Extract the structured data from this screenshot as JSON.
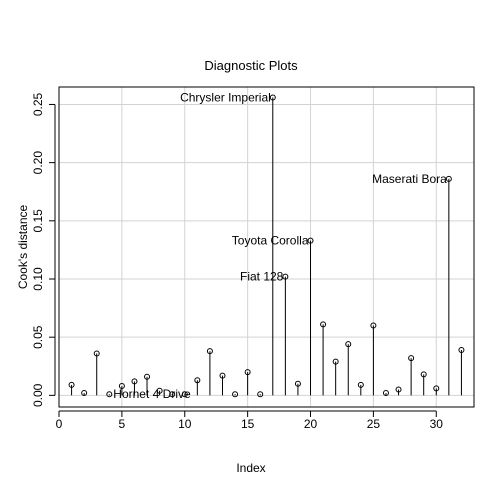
{
  "chart_data": {
    "type": "scatter",
    "style": "spikes with hollow circle markers (Cook's distance index plot)",
    "title": "Diagnostic Plots",
    "xlabel": "Index",
    "ylabel": "Cook's distance",
    "xlim": [
      0,
      33
    ],
    "ylim": [
      -0.01,
      0.265
    ],
    "xticks": [
      0,
      5,
      10,
      15,
      20,
      25,
      30
    ],
    "yticks": [
      0.0,
      0.05,
      0.1,
      0.15,
      0.2,
      0.25
    ],
    "ytick_labels": [
      "0.00",
      "0.05",
      "0.10",
      "0.15",
      "0.20",
      "0.25"
    ],
    "grid": true,
    "x": [
      1,
      2,
      3,
      4,
      5,
      6,
      7,
      8,
      9,
      10,
      11,
      12,
      13,
      14,
      15,
      16,
      17,
      18,
      19,
      20,
      21,
      22,
      23,
      24,
      25,
      26,
      27,
      28,
      29,
      30,
      31,
      32
    ],
    "values": [
      0.009,
      0.002,
      0.036,
      0.001,
      0.008,
      0.012,
      0.016,
      0.004,
      0.001,
      0.001,
      0.013,
      0.038,
      0.017,
      0.001,
      0.02,
      0.001,
      0.256,
      0.102,
      0.01,
      0.133,
      0.061,
      0.029,
      0.044,
      0.009,
      0.06,
      0.002,
      0.005,
      0.032,
      0.018,
      0.006,
      0.186,
      0.039
    ],
    "annotations": [
      {
        "index": 4,
        "label": "Hornet 4 Drive",
        "side": "right"
      },
      {
        "index": 17,
        "label": "Chrysler Imperial",
        "side": "left"
      },
      {
        "index": 18,
        "label": "Fiat 128",
        "side": "left"
      },
      {
        "index": 20,
        "label": "Toyota Corolla",
        "side": "left"
      },
      {
        "index": 31,
        "label": "Maserati Bora",
        "side": "left"
      }
    ],
    "colors": {
      "grid": "#d3d3d3",
      "points": "#000000",
      "frame": "#000000"
    }
  }
}
